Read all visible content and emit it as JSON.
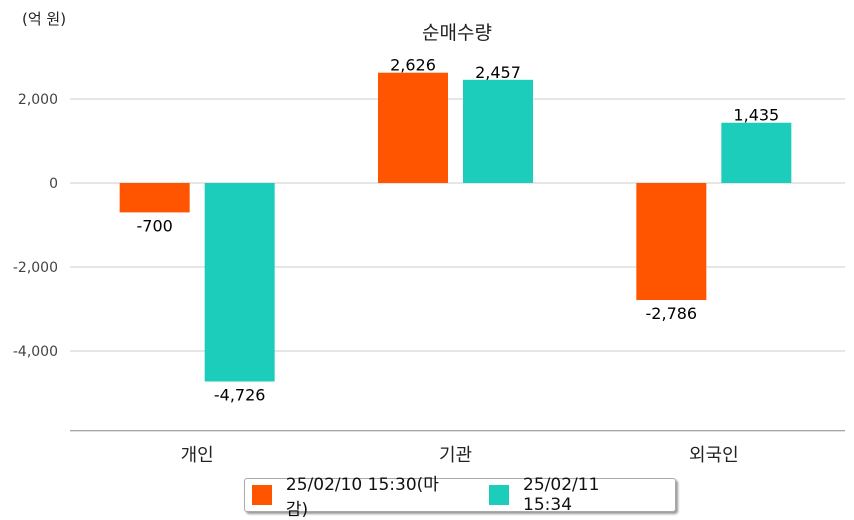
{
  "chart_data": {
    "type": "bar",
    "title": "순매수량",
    "unit_label": "(억 원)",
    "categories": [
      "개인",
      "기관",
      "외국인"
    ],
    "series": [
      {
        "name": "25/02/10 15:30(마감)",
        "color": "#ff5500",
        "values": [
          -700,
          2626,
          -2786
        ],
        "labels": [
          "-700",
          "2,626",
          "-2,786"
        ]
      },
      {
        "name": "25/02/11 15:34",
        "color": "#1ccdbb",
        "values": [
          -4726,
          2457,
          1435
        ],
        "labels": [
          "-4,726",
          "2,457",
          "1,435"
        ]
      }
    ],
    "yticks": [
      2000,
      0,
      -2000,
      -4000
    ],
    "ytick_labels": [
      "2,000",
      "0",
      "-2,000",
      "-4,000"
    ],
    "ylim": [
      -5900,
      3000
    ],
    "grid": true,
    "legend": "bottom"
  }
}
